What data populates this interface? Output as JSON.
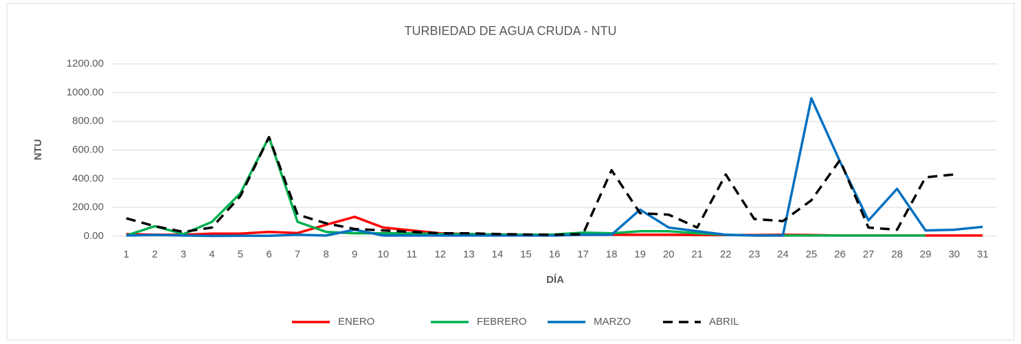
{
  "chart_data": {
    "type": "line",
    "title": "TURBIEDAD DE AGUA CRUDA - NTU",
    "x_label": "DÍA",
    "y_label": "NTU",
    "categories": [
      "1",
      "2",
      "3",
      "4",
      "5",
      "6",
      "7",
      "8",
      "9",
      "10",
      "11",
      "12",
      "13",
      "14",
      "15",
      "16",
      "17",
      "18",
      "19",
      "20",
      "21",
      "22",
      "23",
      "24",
      "25",
      "26",
      "27",
      "28",
      "29",
      "30",
      "31"
    ],
    "series": [
      {
        "name": "ENERO",
        "color": "#ff0000",
        "dashed": false,
        "values": [
          15,
          10,
          10,
          18,
          18,
          30,
          22,
          80,
          135,
          60,
          40,
          20,
          15,
          12,
          10,
          10,
          10,
          10,
          10,
          10,
          8,
          8,
          8,
          10,
          8,
          5,
          5,
          5,
          5,
          5,
          5
        ]
      },
      {
        "name": "FEBRERO",
        "color": "#00b050",
        "dashed": false,
        "values": [
          5,
          70,
          15,
          100,
          300,
          690,
          100,
          30,
          20,
          20,
          20,
          15,
          15,
          12,
          10,
          12,
          25,
          20,
          35,
          35,
          20,
          10,
          5,
          5,
          5,
          5,
          5,
          5,
          5,
          null,
          null
        ]
      },
      {
        "name": "MARZO",
        "color": "#0070c0",
        "dashed": false,
        "values": [
          5,
          8,
          5,
          2,
          3,
          3,
          10,
          5,
          45,
          5,
          5,
          5,
          5,
          5,
          5,
          5,
          10,
          10,
          185,
          60,
          35,
          10,
          5,
          5,
          960,
          520,
          110,
          330,
          40,
          45,
          65
        ]
      },
      {
        "name": "ABRIL",
        "color": "#000000",
        "dashed": true,
        "values": [
          125,
          70,
          30,
          60,
          280,
          690,
          150,
          90,
          50,
          40,
          30,
          20,
          20,
          15,
          12,
          10,
          15,
          460,
          160,
          150,
          60,
          430,
          120,
          105,
          250,
          530,
          60,
          45,
          410,
          430,
          null
        ]
      }
    ],
    "ylim": [
      0,
      1200
    ],
    "yticks": [
      {
        "value": 0,
        "label": "0.00"
      },
      {
        "value": 200,
        "label": "200.00"
      },
      {
        "value": 400,
        "label": "400.00"
      },
      {
        "value": 600,
        "label": "600.00"
      },
      {
        "value": 800,
        "label": "800.00"
      },
      {
        "value": 1000,
        "label": "1000.00"
      },
      {
        "value": 1200,
        "label": "1200.00"
      }
    ],
    "grid": true,
    "legend": "bottom"
  }
}
